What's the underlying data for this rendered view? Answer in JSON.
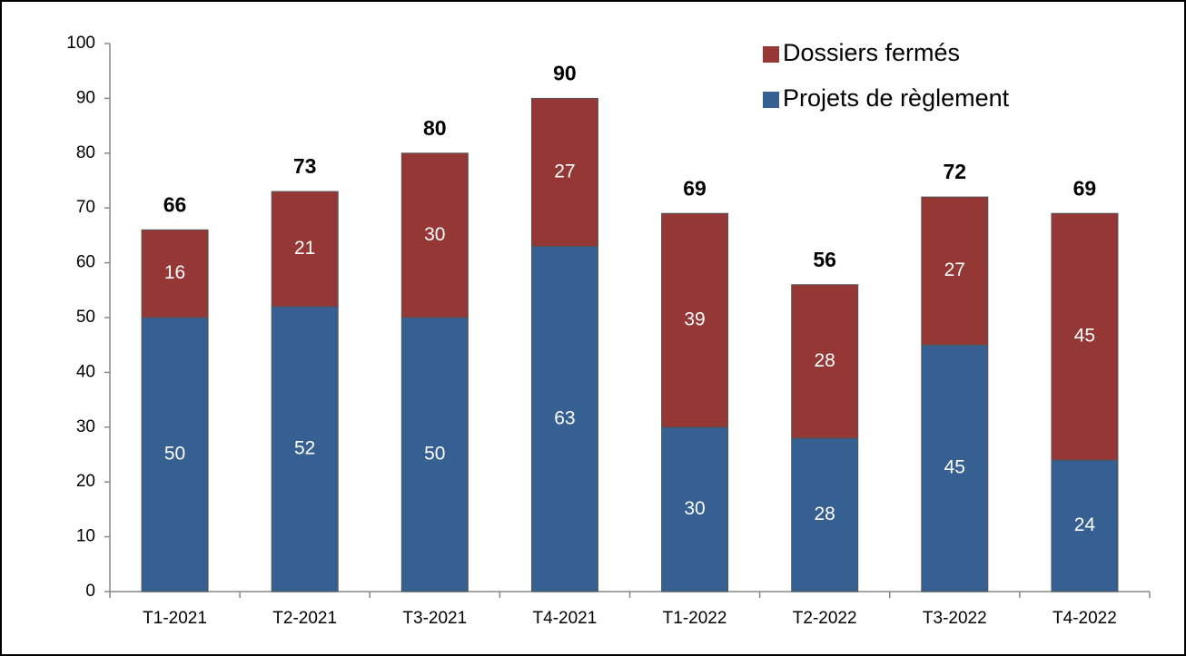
{
  "chart_data": {
    "type": "stacked_bar",
    "categories": [
      "T1-2021",
      "T2-2021",
      "T3-2021",
      "T4-2021",
      "T1-2022",
      "T2-2022",
      "T3-2022",
      "T4-2022"
    ],
    "series": [
      {
        "name": "Projets de règlement",
        "color": "#366092",
        "values": [
          50,
          52,
          50,
          63,
          30,
          28,
          45,
          24
        ]
      },
      {
        "name": "Dossiers fermés",
        "color": "#953735",
        "values": [
          16,
          21,
          30,
          27,
          39,
          28,
          27,
          45
        ]
      }
    ],
    "totals": [
      66,
      73,
      80,
      90,
      69,
      56,
      72,
      69
    ],
    "ylim": [
      0,
      100
    ],
    "yticks": [
      0,
      10,
      20,
      30,
      40,
      50,
      60,
      70,
      80,
      90,
      100
    ],
    "grid": false,
    "legend": "upper right"
  }
}
